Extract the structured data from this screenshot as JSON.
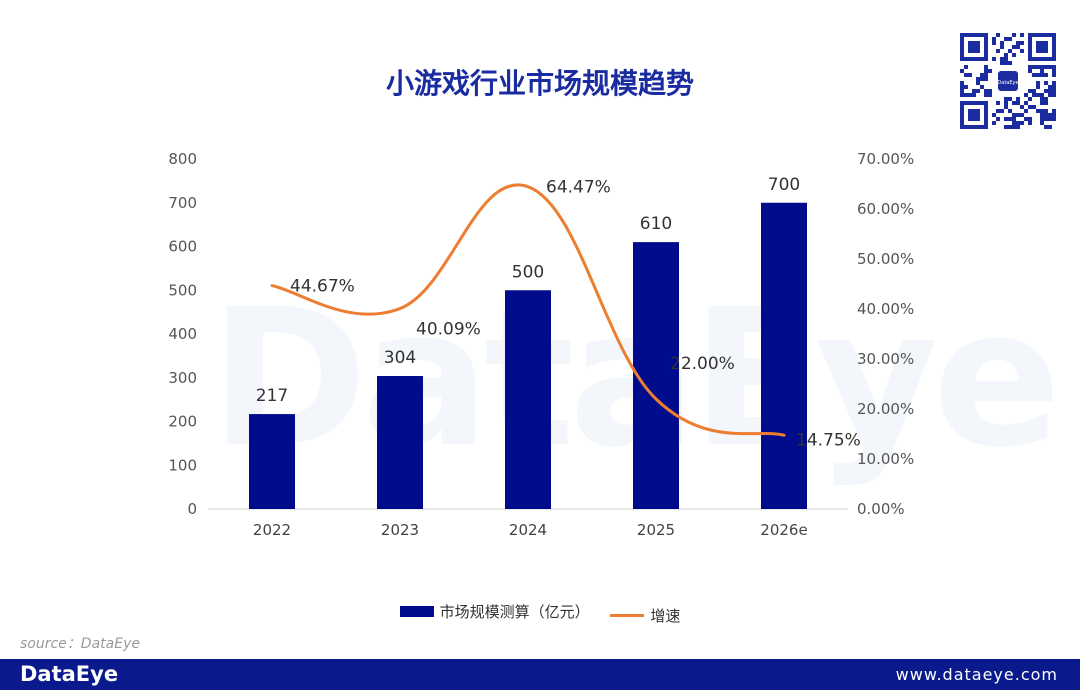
{
  "title": "小游戏行业市场规模趋势",
  "source_label": "source：DataEye",
  "footer": {
    "brand": "DataEye",
    "website": "www.dataeye.com"
  },
  "watermark": "DataEye",
  "qr_center_text": "DataEye",
  "colors": {
    "bar": "#000c8c",
    "line": "#ed7d31",
    "title": "#1a2ca0",
    "footer_bg": "#0a1a8c"
  },
  "legend": {
    "bar_label": "市场规模测算（亿元）",
    "line_label": "增速"
  },
  "chart_data": {
    "type": "bar",
    "title": "小游戏行业市场规模趋势",
    "categories": [
      "2022",
      "2023",
      "2024",
      "2025",
      "2026e"
    ],
    "series": [
      {
        "name": "市场规模测算（亿元）",
        "type": "bar",
        "axis": "left",
        "values": [
          217,
          304,
          500,
          610,
          700
        ],
        "labels": [
          "217",
          "304",
          "500",
          "610",
          "700"
        ]
      },
      {
        "name": "增速",
        "type": "line",
        "axis": "right",
        "smooth": true,
        "values": [
          44.67,
          40.09,
          64.47,
          22.0,
          14.75
        ],
        "labels": [
          "44.67%",
          "40.09%",
          "64.47%",
          "22.00%",
          "14.75%"
        ]
      }
    ],
    "y_left": {
      "min": 0,
      "max": 800,
      "ticks": [
        "0",
        "100",
        "200",
        "300",
        "400",
        "500",
        "600",
        "700",
        "800"
      ]
    },
    "y_right": {
      "min": 0,
      "max": 70,
      "ticks": [
        "0.00%",
        "10.00%",
        "20.00%",
        "30.00%",
        "40.00%",
        "50.00%",
        "60.00%",
        "70.00%"
      ]
    },
    "xlabel": "",
    "ylabel": "",
    "grid": false,
    "legend_position": "bottom-center"
  }
}
